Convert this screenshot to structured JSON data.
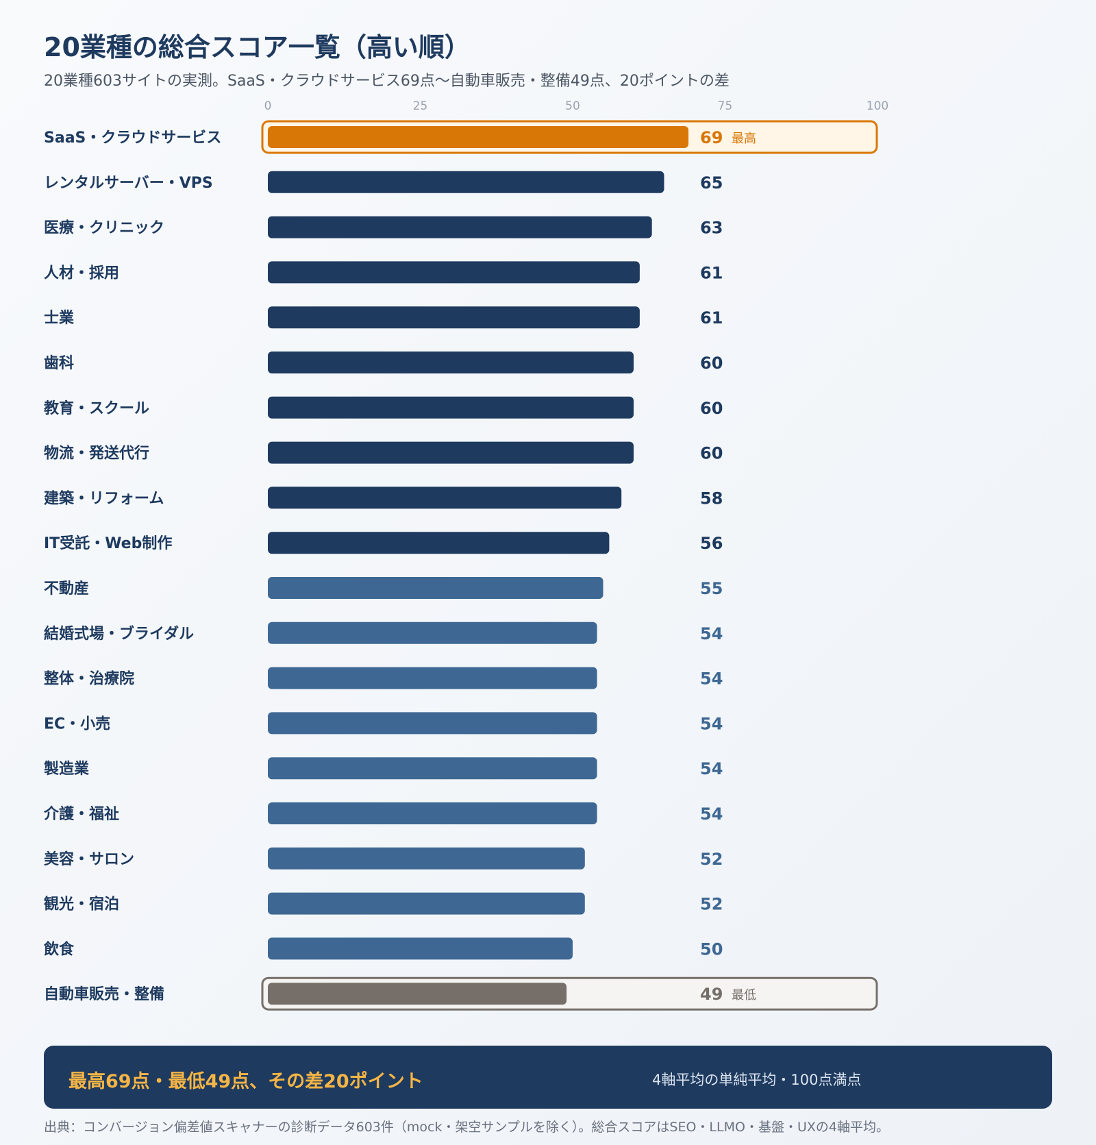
{
  "header": {
    "title": "20業種の総合スコア一覧（高い順）",
    "subtitle": "20業種603サイトの実測。SaaS・クラウドサービス69点〜自動車販売・整備49点、20ポイントの差"
  },
  "chart_data": {
    "type": "bar",
    "orientation": "horizontal",
    "title": "20業種の総合スコア一覧（高い順）",
    "xlim": [
      0,
      100
    ],
    "xticks": [
      0,
      25,
      50,
      75,
      100
    ],
    "grid": false,
    "categories": [
      "SaaS・クラウドサービス",
      "レンタルサーバー・VPS",
      "医療・クリニック",
      "人材・採用",
      "士業",
      "歯科",
      "教育・スクール",
      "物流・発送代行",
      "建築・リフォーム",
      "IT受託・Web制作",
      "不動産",
      "結婚式場・ブライダル",
      "整体・治療院",
      "EC・小売",
      "製造業",
      "介護・福祉",
      "美容・サロン",
      "観光・宿泊",
      "飲食",
      "自動車販売・整備"
    ],
    "values": [
      69,
      65,
      63,
      61,
      61,
      60,
      60,
      60,
      58,
      56,
      55,
      54,
      54,
      54,
      54,
      54,
      52,
      52,
      50,
      49
    ],
    "tiers": [
      "highest",
      "top",
      "top",
      "top",
      "top",
      "top",
      "top",
      "top",
      "top",
      "top",
      "mid",
      "mid",
      "mid",
      "mid",
      "mid",
      "mid",
      "mid",
      "mid",
      "mid",
      "lowest"
    ],
    "annotations": {
      "highest": "最高",
      "lowest": "最低"
    },
    "colors": {
      "highest": "#d97706",
      "top": "#1e3a5f",
      "mid": "#3e6893",
      "lowest": "#756e69",
      "highest_box_fill": "#fff6e7",
      "lowest_box_fill": "#f5f4f2",
      "tick": "#9ca3af"
    }
  },
  "summary": {
    "main": "最高69点・最低49点、その差20ポイント",
    "note": "4軸平均の単純平均・100点満点"
  },
  "footer": {
    "source": "出典：コンバージョン偏差値スキャナーの診断データ603件（mock・架空サンプルを除く）。総合スコアはSEO・LLMO・基盤・UXの4軸平均。"
  }
}
